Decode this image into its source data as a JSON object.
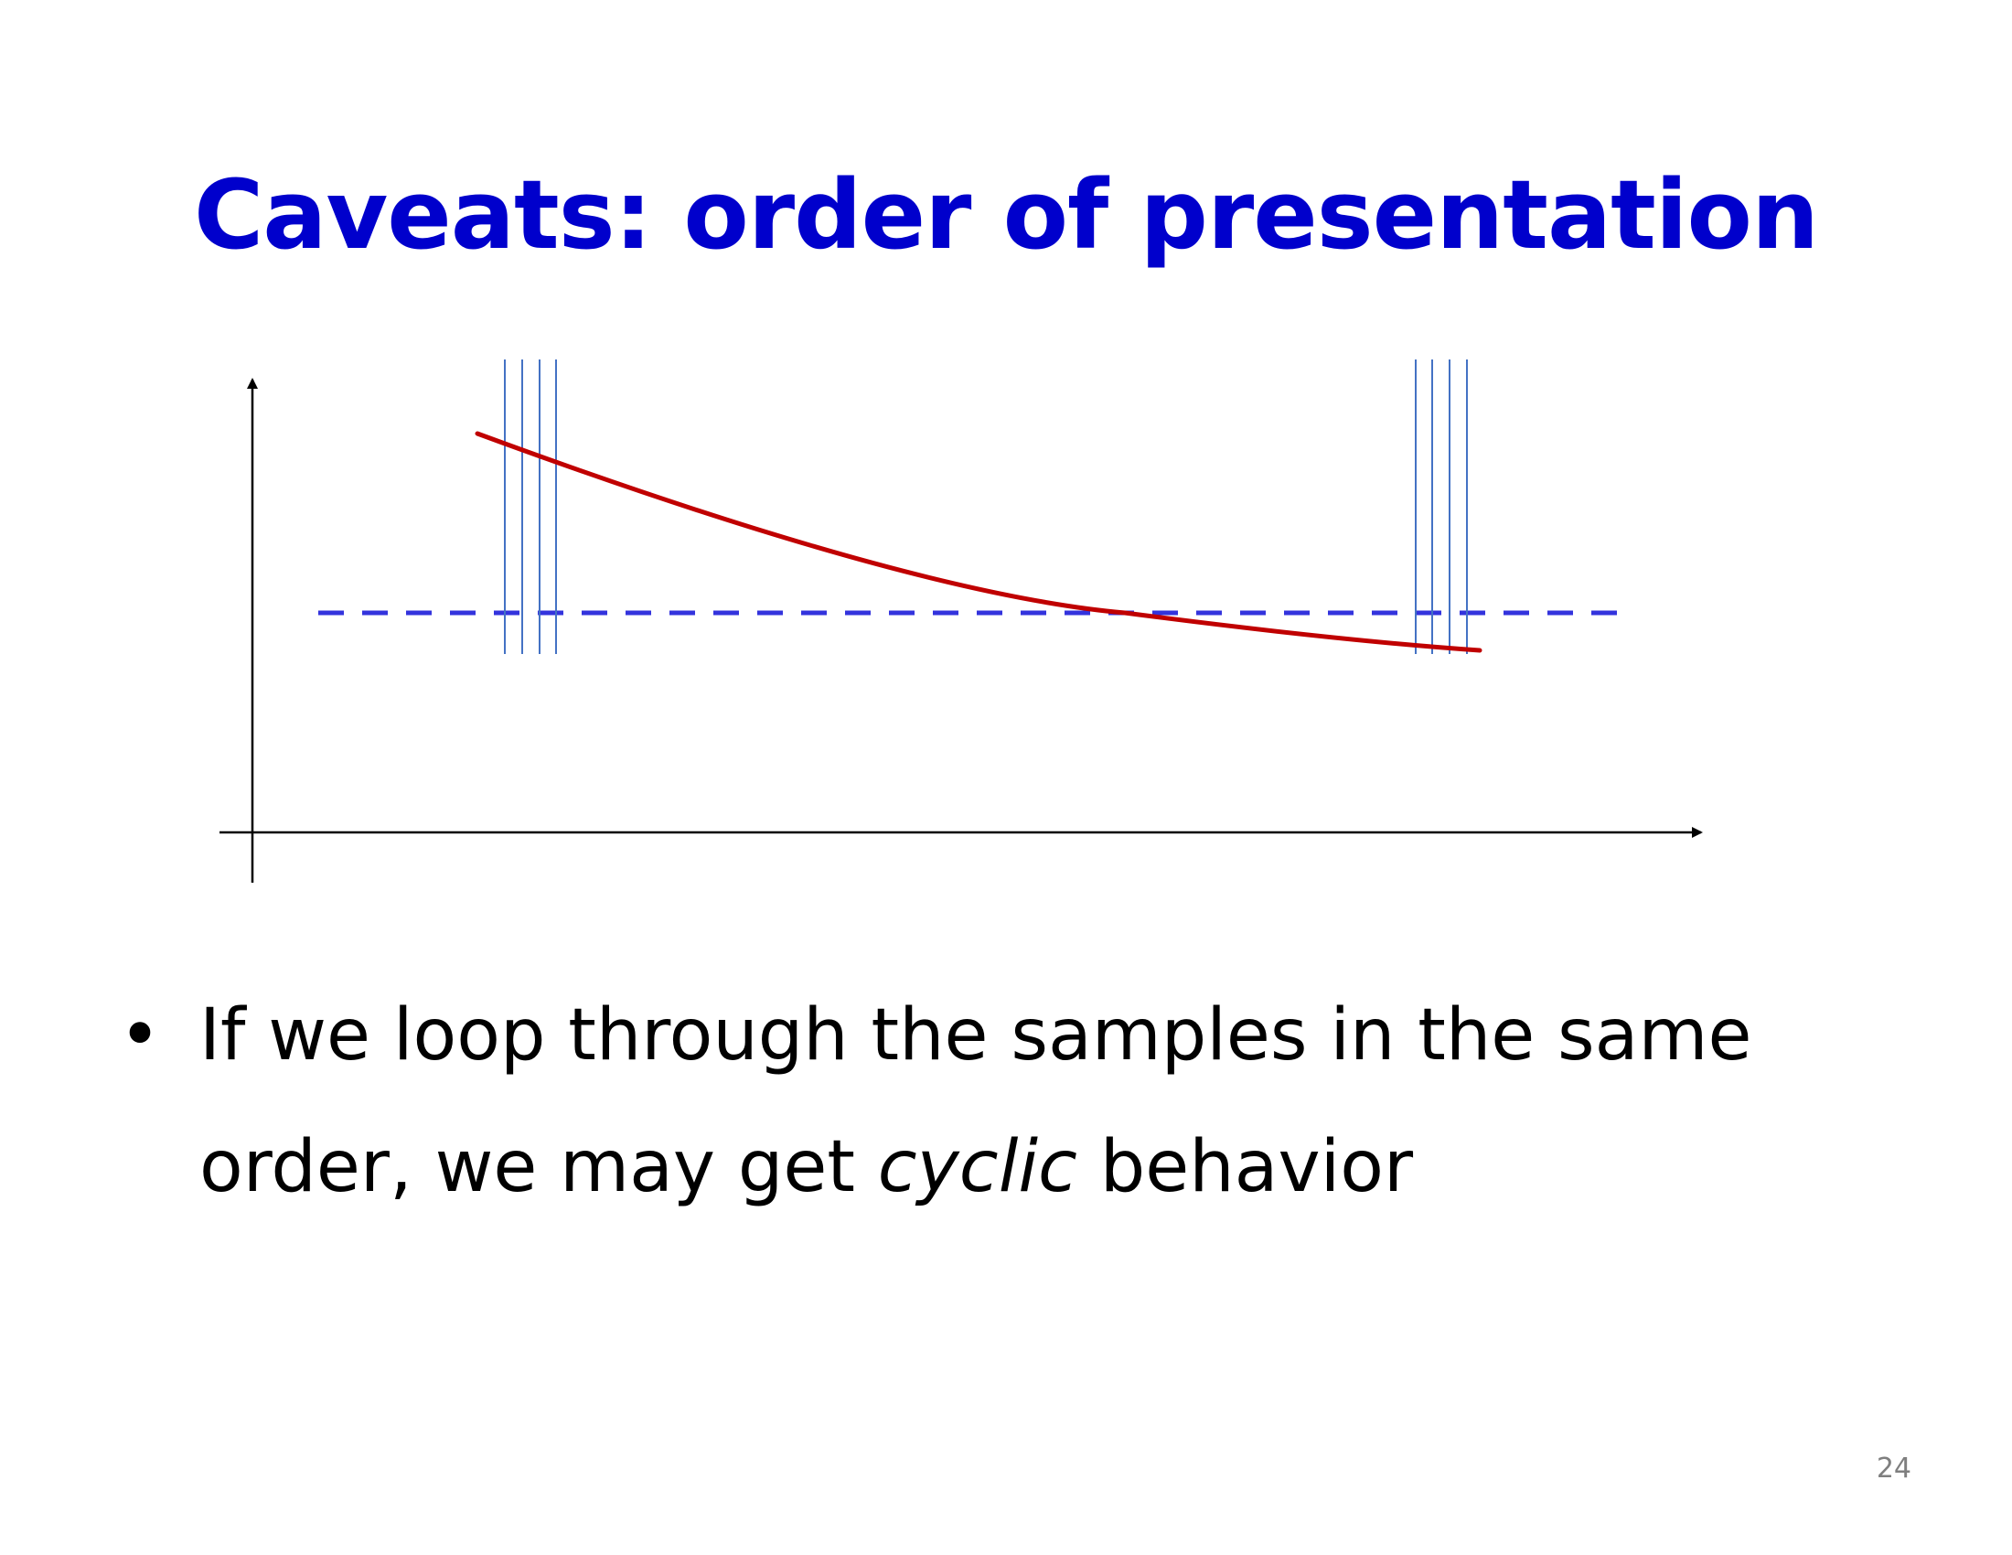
{
  "slide": {
    "title": "Caveats: order of presentation",
    "bullet": {
      "symbol": "•",
      "text_before": "If we loop through the samples in the same order, we may get ",
      "emphasis": "cyclic",
      "text_after": " behavior"
    },
    "page_number": "24"
  },
  "colors": {
    "title": "#0000cc",
    "curve": "#c00000",
    "dashed_line": "#3333dd",
    "sample_lines": "#4472c4",
    "axes": "#000000"
  }
}
